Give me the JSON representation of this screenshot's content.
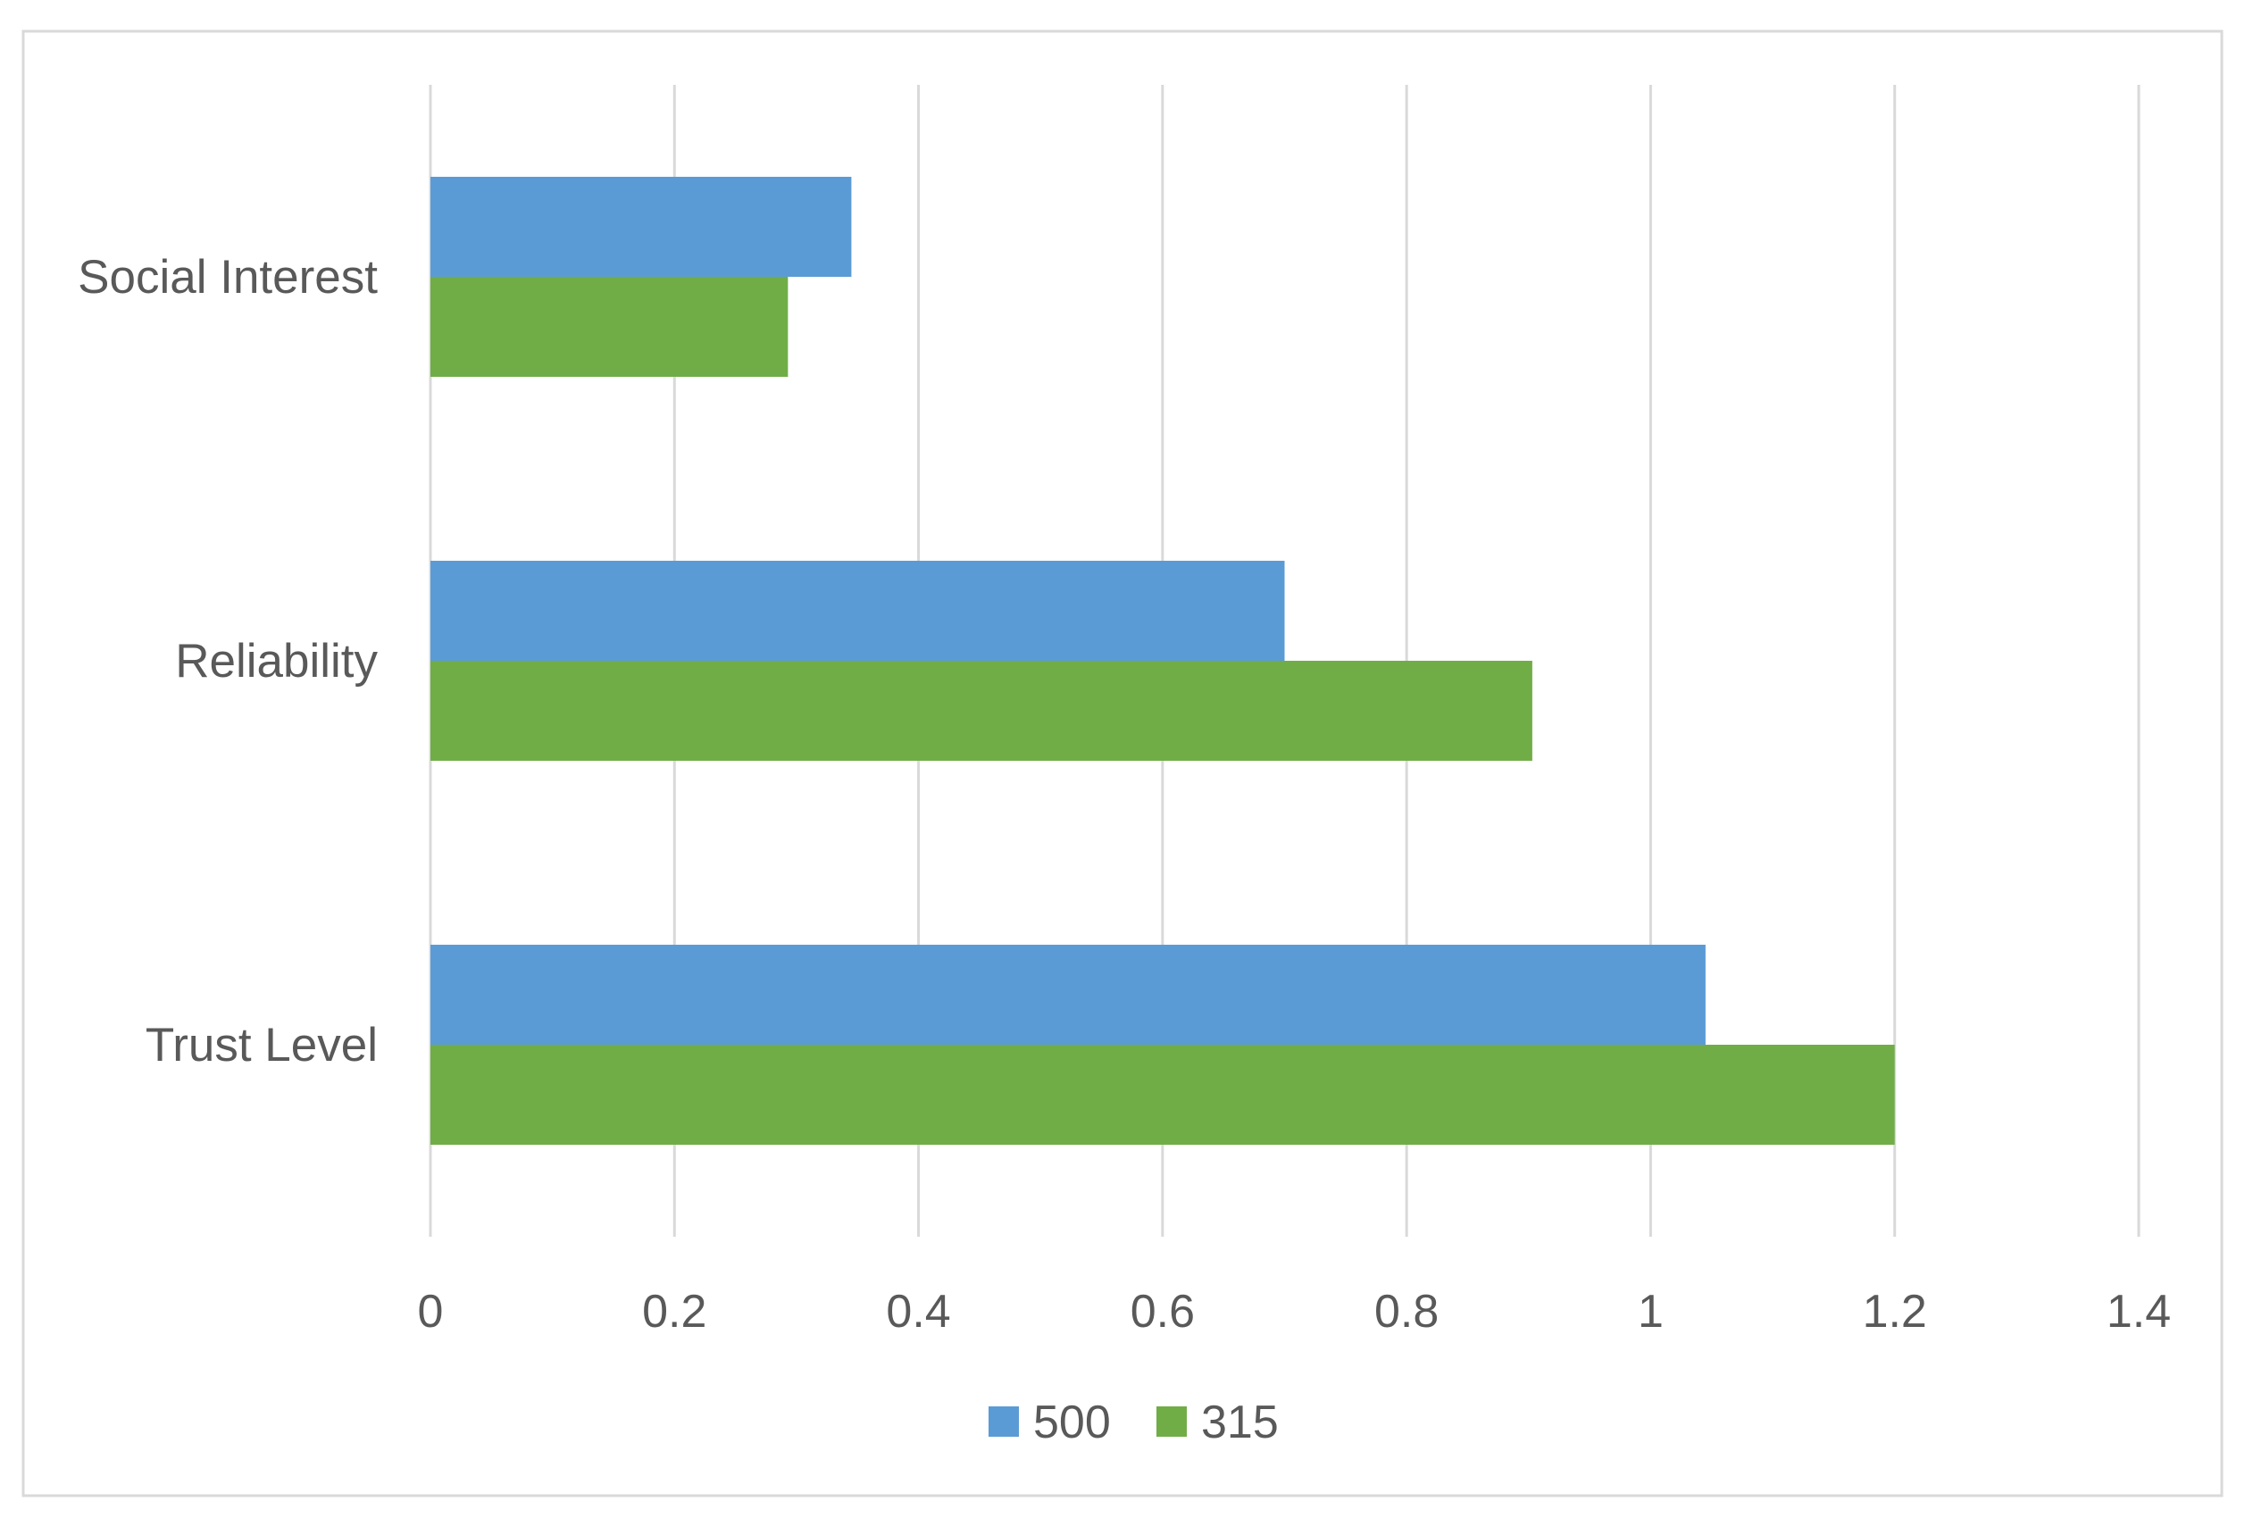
{
  "chart_data": {
    "type": "bar",
    "orientation": "horizontal",
    "categories": [
      "Social Interest",
      "Reliability",
      "Trust Level"
    ],
    "series": [
      {
        "name": "500",
        "values": [
          0.345,
          0.7,
          1.045
        ],
        "color": "#5B9BD5"
      },
      {
        "name": "315",
        "values": [
          0.293,
          0.903,
          1.2
        ],
        "color": "#70AD47"
      }
    ],
    "xlim": [
      0,
      1.4
    ],
    "x_ticks": [
      "0",
      "0.2",
      "0.4",
      "0.6",
      "0.8",
      "1",
      "1.2",
      "1.4"
    ],
    "title": "",
    "xlabel": "",
    "ylabel": "",
    "grid": "vertical",
    "legend": "bottom-center",
    "colors": {
      "gridline": "#D9D9D9",
      "border": "#D9D9D9",
      "text": "#595959"
    }
  }
}
